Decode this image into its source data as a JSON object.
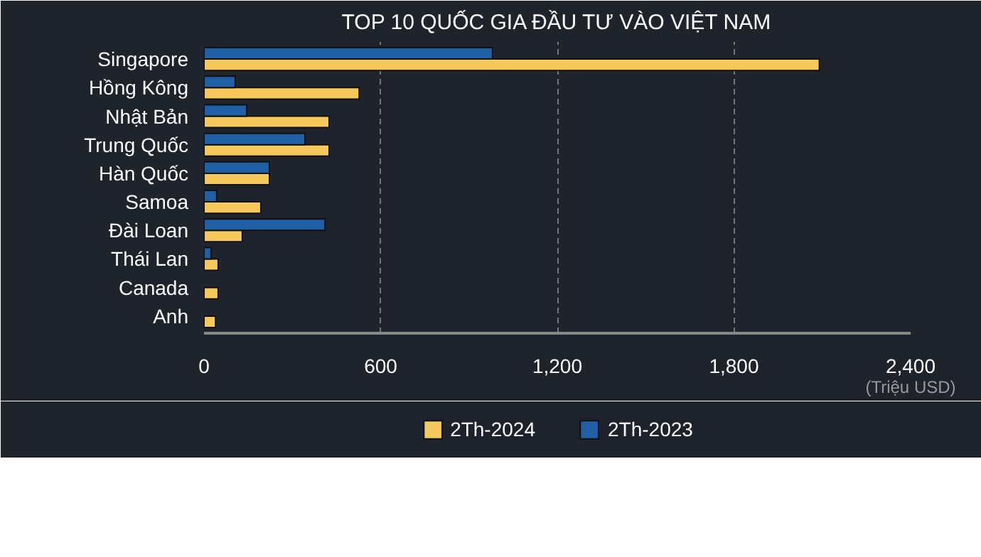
{
  "chart_data": {
    "type": "bar",
    "orientation": "horizontal",
    "title": "TOP 10 QUỐC GIA ĐẦU TƯ VÀO VIỆT NAM",
    "xlabel": "(Triệu USD)",
    "categories": [
      "Singapore",
      "Hồng Kông",
      "Nhật Bản",
      "Trung Quốc",
      "Hàn Quốc",
      "Samoa",
      "Đài Loan",
      "Thái Lan",
      "Canada",
      "Anh"
    ],
    "series": [
      {
        "name": "2Th-2024",
        "color": "#f5c95c",
        "values": [
          2090,
          527,
          425,
          425,
          222,
          193,
          130,
          48,
          48,
          39
        ]
      },
      {
        "name": "2Th-2023",
        "color": "#1f5fa6",
        "values": [
          980,
          106,
          145,
          343,
          222,
          43,
          411,
          24,
          null,
          null
        ]
      }
    ],
    "xlim": [
      0,
      2400
    ],
    "xticks": [
      0,
      {
        "value": 600,
        "label": "600"
      },
      {
        "value": 1200,
        "label": "1,200"
      },
      {
        "value": 1800,
        "label": "1,800"
      },
      {
        "value": 2400,
        "label": "2,400"
      }
    ],
    "grid": "x",
    "legend": "bottom"
  }
}
